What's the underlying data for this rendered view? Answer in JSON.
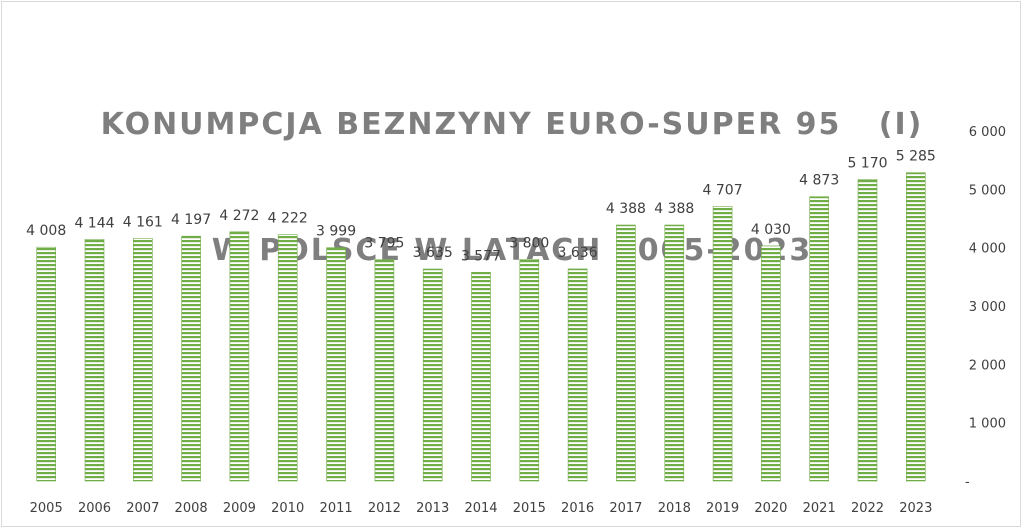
{
  "chart_data": {
    "type": "bar",
    "title_lines": [
      "KONUMPCJA BEZNZYNY EURO-SUPER 95   (I)",
      "W POLSCE W LATACH 2005-2023"
    ],
    "categories": [
      "2005",
      "2006",
      "2007",
      "2008",
      "2009",
      "2010",
      "2011",
      "2012",
      "2013",
      "2014",
      "2015",
      "2016",
      "2017",
      "2018",
      "2019",
      "2020",
      "2021",
      "2022",
      "2023"
    ],
    "values": [
      4008,
      4144,
      4161,
      4197,
      4272,
      4222,
      3999,
      3795,
      3635,
      3577,
      3800,
      3636,
      4388,
      4388,
      4707,
      4030,
      4873,
      5170,
      5285
    ],
    "value_labels": [
      "4 008",
      "4 144",
      "4 161",
      "4 197",
      "4 272",
      "4 222",
      "3 999",
      "3 795",
      "3 635",
      "3 577",
      "3 800",
      "3 636",
      "4 388",
      "4 388",
      "4 707",
      "4 030",
      "4 873",
      "5 170",
      "5 285"
    ],
    "ylim": [
      0,
      6000
    ],
    "y_ticks": [
      0,
      1000,
      2000,
      3000,
      4000,
      5000,
      6000
    ],
    "y_tick_labels": [
      "-",
      "1 000",
      "2 000",
      "3 000",
      "4 000",
      "5 000",
      "6 000"
    ],
    "y_axis_side": "right",
    "grid": false,
    "bar_color": "#70ad47",
    "bar_pattern": "horizontal-stripes"
  }
}
